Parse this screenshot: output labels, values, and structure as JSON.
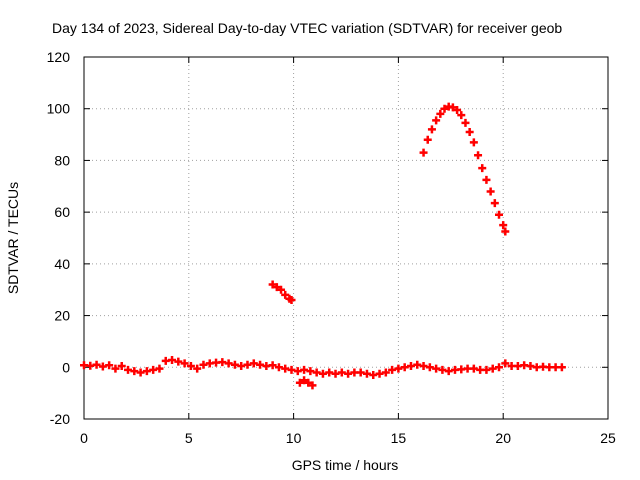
{
  "chart_data": {
    "type": "scatter",
    "title": "Day 134 of 2023, Sidereal Day-to-day VTEC variation (SDTVAR) for receiver geob",
    "xlabel": "GPS time / hours",
    "ylabel": "SDTVAR / TECUs",
    "xlim": [
      0,
      25
    ],
    "ylim": [
      -20,
      120
    ],
    "xticks": [
      0,
      5,
      10,
      15,
      20,
      25
    ],
    "yticks": [
      -20,
      0,
      20,
      40,
      60,
      80,
      100,
      120
    ],
    "grid": true,
    "marker": "+",
    "color": "#ff0000",
    "series": [
      {
        "name": "SDTVAR",
        "points": [
          [
            0.0,
            0.8
          ],
          [
            0.3,
            0.6
          ],
          [
            0.6,
            1.0
          ],
          [
            0.9,
            0.3
          ],
          [
            1.2,
            0.8
          ],
          [
            1.5,
            -0.5
          ],
          [
            1.8,
            0.5
          ],
          [
            2.1,
            -1.0
          ],
          [
            2.4,
            -1.5
          ],
          [
            2.7,
            -2.0
          ],
          [
            3.0,
            -1.5
          ],
          [
            3.3,
            -1.0
          ],
          [
            3.6,
            -0.5
          ],
          [
            3.9,
            2.5
          ],
          [
            4.2,
            2.8
          ],
          [
            4.5,
            2.2
          ],
          [
            4.8,
            1.5
          ],
          [
            5.1,
            0.5
          ],
          [
            5.4,
            -0.5
          ],
          [
            5.7,
            1.0
          ],
          [
            6.0,
            1.5
          ],
          [
            6.3,
            1.8
          ],
          [
            6.6,
            2.0
          ],
          [
            6.9,
            1.5
          ],
          [
            7.2,
            1.0
          ],
          [
            7.5,
            0.5
          ],
          [
            7.8,
            1.0
          ],
          [
            8.1,
            1.5
          ],
          [
            8.4,
            1.0
          ],
          [
            8.7,
            0.5
          ],
          [
            9.0,
            0.8
          ],
          [
            9.3,
            0.0
          ],
          [
            9.6,
            -0.5
          ],
          [
            9.9,
            -1.0
          ],
          [
            10.2,
            -1.5
          ],
          [
            10.5,
            -1.0
          ],
          [
            10.8,
            -1.5
          ],
          [
            11.1,
            -2.0
          ],
          [
            11.4,
            -2.5
          ],
          [
            11.7,
            -2.0
          ],
          [
            12.0,
            -2.5
          ],
          [
            12.3,
            -2.0
          ],
          [
            12.6,
            -2.5
          ],
          [
            12.9,
            -2.0
          ],
          [
            13.2,
            -2.0
          ],
          [
            13.5,
            -2.5
          ],
          [
            13.8,
            -3.0
          ],
          [
            14.1,
            -2.5
          ],
          [
            14.4,
            -2.0
          ],
          [
            14.7,
            -1.0
          ],
          [
            15.0,
            -0.5
          ],
          [
            15.3,
            0.0
          ],
          [
            15.6,
            0.5
          ],
          [
            15.9,
            1.0
          ],
          [
            16.2,
            0.5
          ],
          [
            16.5,
            0.0
          ],
          [
            16.8,
            -0.5
          ],
          [
            17.1,
            -1.0
          ],
          [
            17.4,
            -1.5
          ],
          [
            17.7,
            -1.0
          ],
          [
            18.0,
            -0.8
          ],
          [
            18.3,
            -0.5
          ],
          [
            18.6,
            -0.5
          ],
          [
            18.9,
            -1.0
          ],
          [
            19.2,
            -1.0
          ],
          [
            19.5,
            -0.5
          ],
          [
            19.8,
            0.0
          ],
          [
            20.1,
            1.5
          ],
          [
            20.4,
            0.5
          ],
          [
            20.7,
            0.5
          ],
          [
            21.0,
            0.8
          ],
          [
            21.3,
            0.5
          ],
          [
            21.6,
            0.0
          ],
          [
            21.9,
            0.2
          ],
          [
            22.2,
            0.0
          ],
          [
            22.5,
            0.0
          ],
          [
            22.8,
            0.0
          ],
          [
            10.3,
            -6.0
          ],
          [
            10.5,
            -5.0
          ],
          [
            10.7,
            -6.0
          ],
          [
            10.9,
            -7.0
          ],
          [
            9.0,
            32.0
          ],
          [
            9.2,
            31.0
          ],
          [
            9.4,
            30.0
          ],
          [
            9.6,
            28.0
          ],
          [
            9.8,
            26.5
          ],
          [
            9.9,
            26.0
          ],
          [
            16.2,
            83.0
          ],
          [
            16.4,
            88.0
          ],
          [
            16.6,
            92.0
          ],
          [
            16.8,
            95.5
          ],
          [
            17.0,
            98.0
          ],
          [
            17.2,
            100.0
          ],
          [
            17.4,
            100.8
          ],
          [
            17.6,
            100.5
          ],
          [
            17.8,
            99.5
          ],
          [
            18.0,
            97.5
          ],
          [
            18.2,
            94.5
          ],
          [
            18.4,
            91.0
          ],
          [
            18.6,
            87.0
          ],
          [
            18.8,
            82.0
          ],
          [
            19.0,
            77.0
          ],
          [
            19.2,
            72.5
          ],
          [
            19.4,
            68.0
          ],
          [
            19.6,
            63.5
          ],
          [
            19.8,
            59.0
          ],
          [
            20.0,
            55.0
          ],
          [
            20.1,
            52.5
          ]
        ]
      }
    ]
  }
}
